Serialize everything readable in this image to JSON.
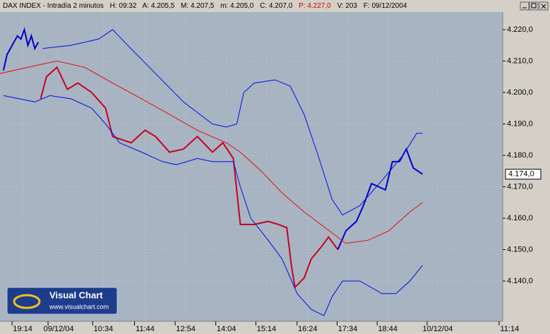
{
  "header": {
    "title": "DAX INDEX - Intradía 2 minutos",
    "fields": [
      "H: 09:32",
      "A: 4.205,5",
      "M: 4.207,5",
      "m: 4.205,0",
      "C: 4.207,0",
      "P: 4.227,0",
      "V: 203",
      "F: 09/12/2004"
    ]
  },
  "logo": {
    "title": "Visual Chart",
    "url": "www.visualchart.com"
  },
  "chart_data": {
    "type": "line",
    "grid": true,
    "xlim": [
      0,
      433
    ],
    "ylim": [
      4127.2,
      4225.6
    ],
    "yticks": [
      {
        "value": 4140,
        "label": "4.140,0"
      },
      {
        "value": 4150,
        "label": "4.150,0"
      },
      {
        "value": 4160,
        "label": "4.160,0"
      },
      {
        "value": 4170,
        "label": "4.170,0"
      },
      {
        "value": 4180,
        "label": "4.180,0"
      },
      {
        "value": 4190,
        "label": "4.190,0"
      },
      {
        "value": 4200,
        "label": "4.200,0"
      },
      {
        "value": 4210,
        "label": "4.210,0"
      },
      {
        "value": 4220,
        "label": "4.220,0"
      }
    ],
    "xticks": [
      {
        "value": 19.5,
        "label": "19:14"
      },
      {
        "value": 50.5,
        "label": "09/12/04"
      },
      {
        "value": 89,
        "label": "10:34"
      },
      {
        "value": 125,
        "label": "11:44"
      },
      {
        "value": 160,
        "label": "12:54"
      },
      {
        "value": 195,
        "label": "14:04"
      },
      {
        "value": 229.5,
        "label": "15:14"
      },
      {
        "value": 265,
        "label": "16:24"
      },
      {
        "value": 299.5,
        "label": "17:34"
      },
      {
        "value": 334,
        "label": "18:44"
      },
      {
        "value": 377,
        "label": "10/12/04"
      },
      {
        "value": 439,
        "label": "11:14"
      }
    ],
    "last_price": {
      "value": 4174,
      "label": "4.174,0"
    },
    "series": [
      {
        "color": "#0000c8",
        "width": 2,
        "x": [
          3,
          6,
          9,
          12,
          15,
          18,
          21,
          24,
          27,
          30,
          33
        ],
        "values": [
          4207,
          4212,
          4214,
          4216,
          4218,
          4217,
          4220,
          4215,
          4218,
          4214,
          4216
        ]
      },
      {
        "color": "#c80020",
        "width": 2,
        "x": [
          35,
          40,
          49,
          58,
          67,
          79,
          91,
          97,
          113,
          125,
          134,
          146,
          158,
          170,
          183,
          192,
          201,
          207,
          219,
          231,
          240,
          247,
          251,
          254,
          262,
          268,
          277,
          283,
          291
        ],
        "values": [
          4198,
          4205,
          4208,
          4201,
          4203,
          4200,
          4195,
          4186,
          4184,
          4188,
          4186,
          4181,
          4182,
          4186,
          4181,
          4184,
          4179,
          4158,
          4158,
          4159,
          4158,
          4157,
          4145,
          4138,
          4141,
          4147,
          4151,
          4154,
          4150
        ]
      },
      {
        "color": "#0000c8",
        "width": 2,
        "x": [
          291,
          298,
          307,
          313,
          320,
          332,
          338,
          344,
          350,
          356,
          364
        ],
        "values": [
          4150,
          4156,
          4159,
          4164,
          4171,
          4169,
          4178,
          4178,
          4182,
          4176,
          4174
        ]
      },
      {
        "color": "#0010e0",
        "width": 1,
        "x": [
          37,
          61,
          85,
          97,
          110,
          134,
          158,
          183,
          195,
          204,
          210,
          219,
          237,
          250,
          262,
          274,
          286,
          295,
          310,
          329,
          347,
          359,
          364
        ],
        "values": [
          4214,
          4215,
          4217,
          4220,
          4215,
          4206,
          4197,
          4190,
          4189,
          4190,
          4200,
          4203,
          4204,
          4202,
          4193,
          4180,
          4166,
          4161,
          4164,
          4172,
          4180,
          4187,
          4187
        ]
      },
      {
        "color": "#0010e0",
        "width": 1,
        "x": [
          3,
          30,
          43,
          61,
          79,
          91,
          103,
          122,
          140,
          152,
          170,
          183,
          201,
          207,
          216,
          231,
          243,
          256,
          268,
          279,
          286,
          295,
          310,
          329,
          341,
          353,
          364
        ],
        "values": [
          4199,
          4197,
          4199,
          4198,
          4195,
          4190,
          4184,
          4181,
          4178,
          4177,
          4179,
          4178,
          4178,
          4170,
          4160,
          4153,
          4147,
          4136,
          4131,
          4129,
          4135,
          4140,
          4140,
          4136,
          4136,
          4140,
          4145
        ]
      },
      {
        "color": "#e01010",
        "width": 1,
        "x": [
          0,
          24,
          49,
          73,
          97,
          122,
          146,
          170,
          195,
          207,
          225,
          243,
          262,
          280,
          298,
          317,
          335,
          353,
          364
        ],
        "values": [
          4206,
          4208,
          4210,
          4208,
          4203,
          4198,
          4193,
          4188,
          4184,
          4181,
          4175,
          4168,
          4162,
          4157,
          4152,
          4153,
          4156,
          4162,
          4165
        ]
      }
    ]
  }
}
